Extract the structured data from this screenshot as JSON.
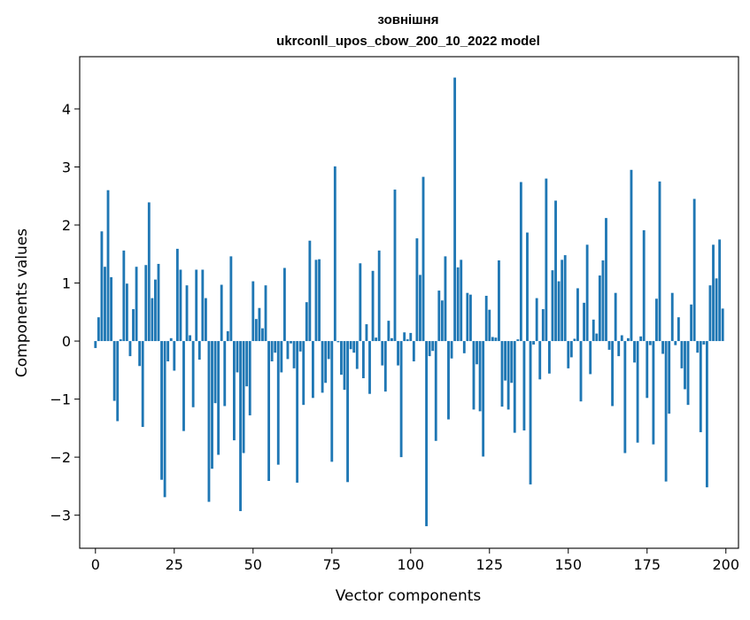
{
  "chart_data": {
    "type": "bar",
    "title_line1": "зовнішня",
    "title_line2": "ukrconll_upos_cbow_200_10_2022 model",
    "xlabel": "Vector components",
    "ylabel": "Components values",
    "xlim": [
      -5,
      204
    ],
    "ylim": [
      -3.57,
      4.9
    ],
    "xticks": [
      0,
      25,
      50,
      75,
      100,
      125,
      150,
      175,
      200
    ],
    "yticks": [
      -3,
      -2,
      -1,
      0,
      1,
      2,
      3,
      4
    ],
    "grid": false,
    "bar_color": "#1f77b4",
    "values": [
      -0.12,
      0.41,
      1.89,
      1.28,
      2.6,
      1.1,
      -1.03,
      -1.38,
      0.03,
      1.56,
      0.99,
      -0.26,
      0.55,
      1.28,
      -0.43,
      -1.48,
      1.31,
      2.39,
      0.74,
      1.06,
      1.33,
      -2.39,
      -2.69,
      -0.35,
      0.05,
      -0.51,
      1.59,
      1.23,
      -1.55,
      0.96,
      0.1,
      -1.14,
      1.23,
      -0.32,
      1.23,
      0.74,
      -2.77,
      -2.2,
      -1.07,
      -1.96,
      0.97,
      -1.12,
      0.17,
      1.46,
      -1.71,
      -0.54,
      -2.93,
      -1.93,
      -0.78,
      -1.28,
      1.03,
      0.38,
      0.57,
      0.22,
      0.96,
      -2.41,
      -0.35,
      -0.2,
      -2.13,
      -0.54,
      1.26,
      -0.31,
      -0.04,
      -0.47,
      -2.44,
      -0.18,
      -1.1,
      0.67,
      1.73,
      -0.98,
      1.4,
      1.41,
      -0.89,
      -0.72,
      -0.31,
      -2.08,
      3.01,
      -0.02,
      -0.58,
      -0.84,
      -2.43,
      -0.14,
      -0.2,
      -0.48,
      1.34,
      -0.64,
      0.29,
      -0.91,
      1.21,
      0.06,
      1.56,
      -0.42,
      -0.87,
      0.35,
      0.05,
      2.61,
      -0.42,
      -2.0,
      0.15,
      0.03,
      0.14,
      -0.35,
      1.77,
      1.14,
      2.83,
      -3.19,
      -0.26,
      -0.17,
      -1.72,
      0.87,
      0.7,
      1.46,
      -1.35,
      -0.3,
      4.54,
      1.27,
      1.4,
      -0.21,
      0.83,
      0.8,
      -1.18,
      -0.4,
      -1.21,
      -1.99,
      0.78,
      0.54,
      0.07,
      0.06,
      1.39,
      -1.13,
      -0.68,
      -1.18,
      -0.72,
      -1.58,
      0.03,
      2.74,
      -1.54,
      1.87,
      -2.47,
      -0.06,
      0.74,
      -0.66,
      0.55,
      2.8,
      -0.56,
      1.22,
      2.42,
      1.03,
      1.4,
      1.48,
      -0.47,
      -0.28,
      0.04,
      0.91,
      -1.04,
      0.66,
      1.66,
      -0.57,
      0.37,
      0.13,
      1.13,
      1.39,
      2.12,
      -0.15,
      -1.12,
      0.83,
      -0.26,
      0.1,
      -1.93,
      0.05,
      2.95,
      -0.37,
      -1.75,
      0.08,
      1.91,
      -0.98,
      -0.07,
      -1.78,
      0.73,
      2.75,
      -0.22,
      -2.42,
      -1.25,
      0.83,
      -0.07,
      0.41,
      -0.47,
      -0.83,
      -1.1,
      0.63,
      2.45,
      -0.2,
      -1.57,
      -0.06,
      -2.52,
      0.96,
      1.66,
      1.08,
      1.75,
      0.56
    ]
  }
}
